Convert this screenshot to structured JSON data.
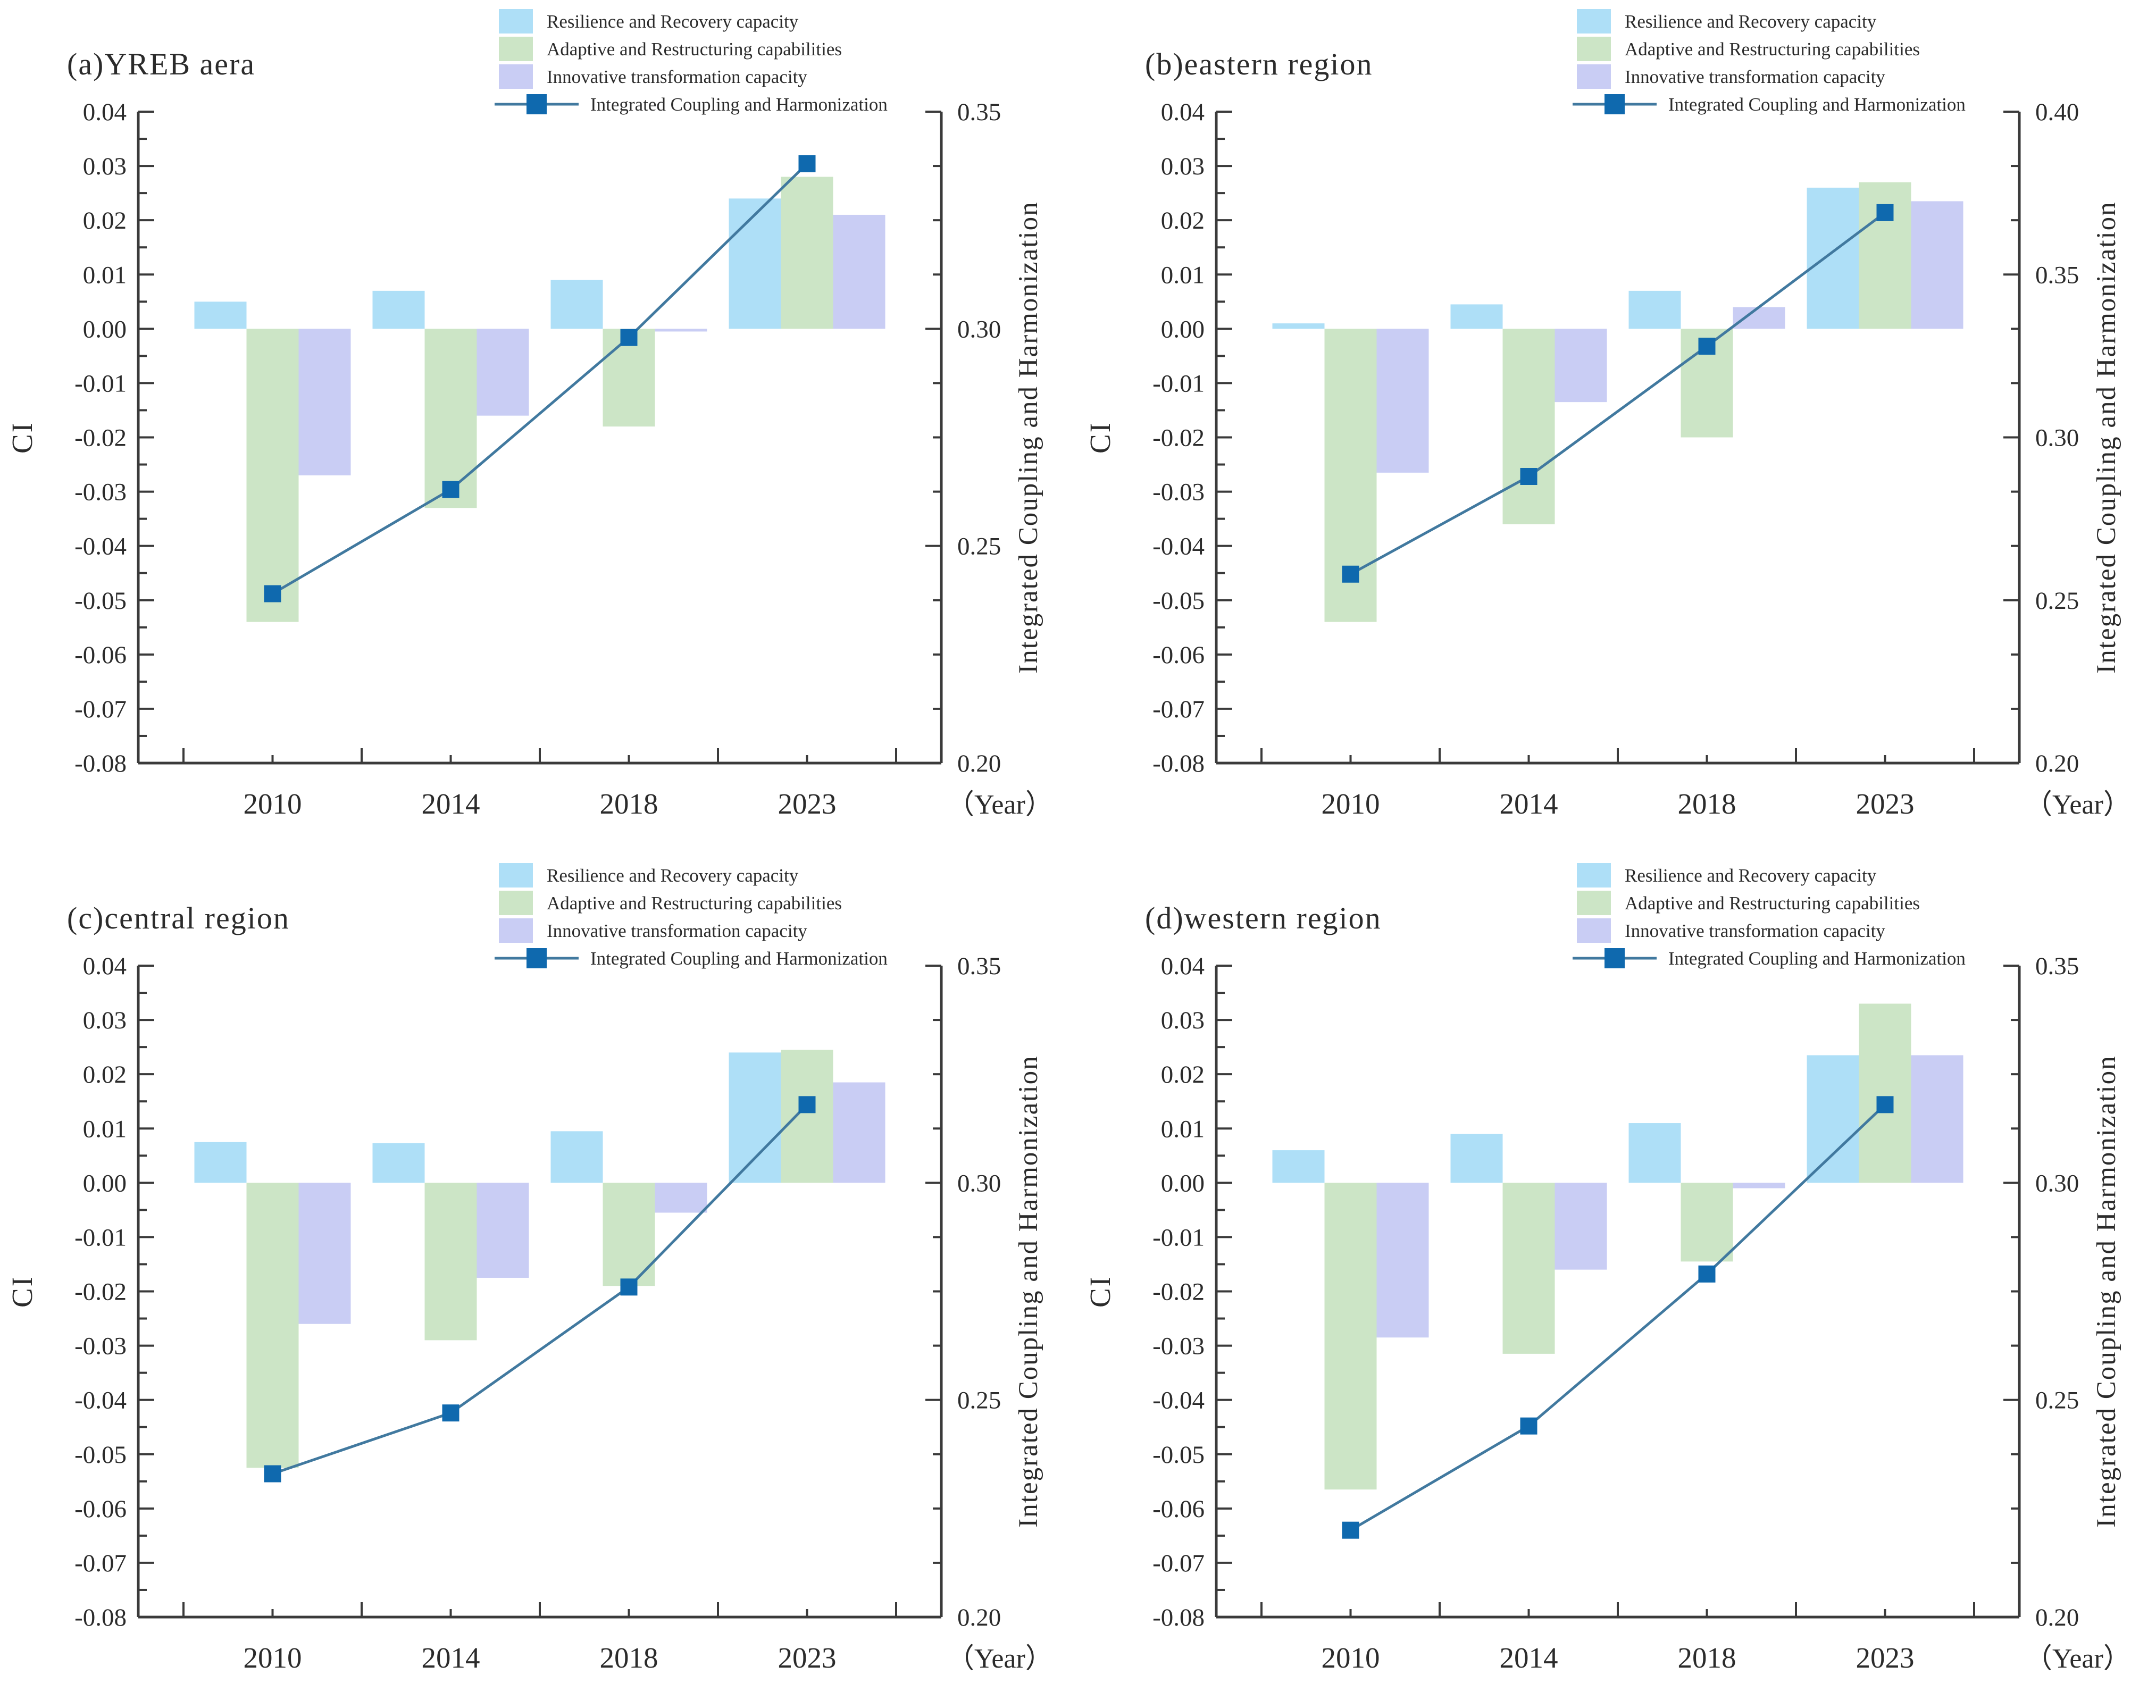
{
  "figure": {
    "categories": [
      "2010",
      "2014",
      "2018",
      "2023"
    ],
    "xlabel": "（Year）",
    "left_axis_label": "CI",
    "right_axis_label": "Integrated Coupling and Harmonization",
    "colors": {
      "resilience": "#aedff7",
      "adaptive": "#cce5c6",
      "innovative": "#c9cdf4",
      "line": "#41799f",
      "marker": "#0f69ae",
      "axis": "#3a3a3a",
      "text": "#2b2b2b"
    },
    "legend": [
      {
        "label": "Resilience and Recovery capacity",
        "type": "bar",
        "color_key": "resilience"
      },
      {
        "label": "Adaptive and Restructuring capabilities",
        "type": "bar",
        "color_key": "adaptive"
      },
      {
        "label": "Innovative transformation capacity",
        "type": "bar",
        "color_key": "innovative"
      },
      {
        "label": "Integrated Coupling and Harmonization",
        "type": "line",
        "color_key": "line"
      }
    ]
  },
  "chart_data": [
    {
      "id": "a",
      "type": "bar+line",
      "title": "(a)YREB aera",
      "categories": [
        "2010",
        "2014",
        "2018",
        "2023"
      ],
      "xlabel": "（Year）",
      "left_axis": {
        "label": "CI",
        "min": -0.08,
        "max": 0.04,
        "major_step": 0.01,
        "minor_step": 0.005
      },
      "right_axis": {
        "label": "Integrated Coupling and Harmonization",
        "min": 0.2,
        "max": 0.35,
        "label_step": 0.05
      },
      "series": [
        {
          "name": "Resilience and Recovery capacity",
          "axis": "left",
          "values": [
            0.005,
            0.007,
            0.009,
            0.024
          ]
        },
        {
          "name": "Adaptive and Restructuring capabilities",
          "axis": "left",
          "values": [
            -0.054,
            -0.033,
            -0.018,
            0.028
          ]
        },
        {
          "name": "Innovative transformation capacity",
          "axis": "left",
          "values": [
            -0.027,
            -0.016,
            -0.0005,
            0.021
          ]
        }
      ],
      "line_series": {
        "name": "Integrated Coupling and Harmonization",
        "axis": "right",
        "values": [
          0.239,
          0.263,
          0.298,
          0.338
        ]
      }
    },
    {
      "id": "b",
      "type": "bar+line",
      "title": "(b)eastern region",
      "categories": [
        "2010",
        "2014",
        "2018",
        "2023"
      ],
      "xlabel": "（Year）",
      "left_axis": {
        "label": "CI",
        "min": -0.08,
        "max": 0.04,
        "major_step": 0.01,
        "minor_step": 0.005
      },
      "right_axis": {
        "label": "Integrated Coupling and Harmonization",
        "min": 0.2,
        "max": 0.4,
        "label_step": 0.05
      },
      "series": [
        {
          "name": "Resilience and Recovery capacity",
          "axis": "left",
          "values": [
            0.001,
            0.0045,
            0.007,
            0.026
          ]
        },
        {
          "name": "Adaptive and Restructuring capabilities",
          "axis": "left",
          "values": [
            -0.054,
            -0.036,
            -0.02,
            0.027
          ]
        },
        {
          "name": "Innovative transformation capacity",
          "axis": "left",
          "values": [
            -0.0265,
            -0.0135,
            0.004,
            0.0235
          ]
        }
      ],
      "line_series": {
        "name": "Integrated Coupling and Harmonization",
        "axis": "right",
        "values": [
          0.258,
          0.288,
          0.328,
          0.369
        ]
      }
    },
    {
      "id": "c",
      "type": "bar+line",
      "title": "(c)central region",
      "categories": [
        "2010",
        "2014",
        "2018",
        "2023"
      ],
      "xlabel": "（Year）",
      "left_axis": {
        "label": "CI",
        "min": -0.08,
        "max": 0.04,
        "major_step": 0.01,
        "minor_step": 0.005
      },
      "right_axis": {
        "label": "Integrated Coupling and Harmonization",
        "min": 0.2,
        "max": 0.35,
        "label_step": 0.05
      },
      "series": [
        {
          "name": "Resilience and Recovery capacity",
          "axis": "left",
          "values": [
            0.0075,
            0.0073,
            0.0095,
            0.024
          ]
        },
        {
          "name": "Adaptive and Restructuring capabilities",
          "axis": "left",
          "values": [
            -0.0525,
            -0.029,
            -0.019,
            0.0245
          ]
        },
        {
          "name": "Innovative transformation capacity",
          "axis": "left",
          "values": [
            -0.026,
            -0.0175,
            -0.0055,
            0.0185
          ]
        }
      ],
      "line_series": {
        "name": "Integrated Coupling and Harmonization",
        "axis": "right",
        "values": [
          0.233,
          0.247,
          0.276,
          0.318
        ]
      }
    },
    {
      "id": "d",
      "type": "bar+line",
      "title": "(d)western region",
      "categories": [
        "2010",
        "2014",
        "2018",
        "2023"
      ],
      "xlabel": "（Year）",
      "left_axis": {
        "label": "CI",
        "min": -0.08,
        "max": 0.04,
        "major_step": 0.01,
        "minor_step": 0.005
      },
      "right_axis": {
        "label": "Integrated Coupling and Harmonization",
        "min": 0.2,
        "max": 0.35,
        "label_step": 0.05
      },
      "series": [
        {
          "name": "Resilience and Recovery capacity",
          "axis": "left",
          "values": [
            0.006,
            0.009,
            0.011,
            0.0235
          ]
        },
        {
          "name": "Adaptive and Restructuring capabilities",
          "axis": "left",
          "values": [
            -0.0565,
            -0.0315,
            -0.0145,
            0.033
          ]
        },
        {
          "name": "Innovative transformation capacity",
          "axis": "left",
          "values": [
            -0.0285,
            -0.016,
            -0.001,
            0.0235
          ]
        }
      ],
      "line_series": {
        "name": "Integrated Coupling and Harmonization",
        "axis": "right",
        "values": [
          0.22,
          0.244,
          0.279,
          0.318
        ]
      }
    }
  ]
}
